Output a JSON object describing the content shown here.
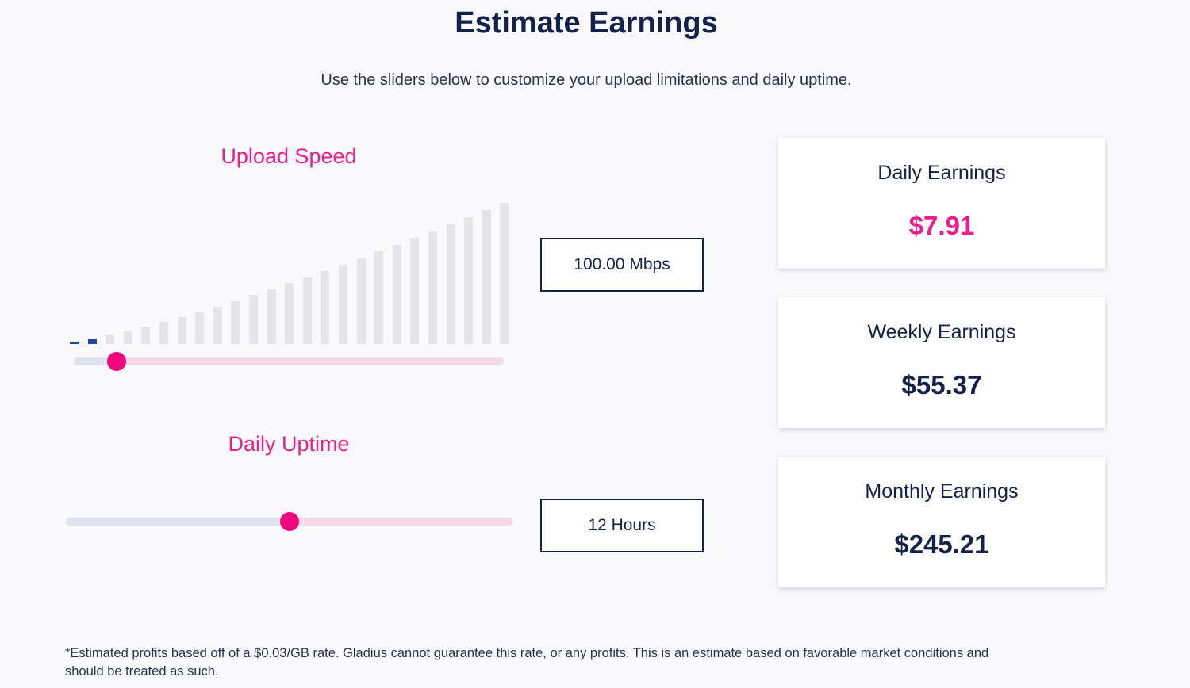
{
  "header": {
    "title": "Estimate Earnings",
    "subtitle": "Use the sliders below to customize your upload limitations and daily uptime."
  },
  "upload_speed": {
    "label": "Upload Speed",
    "value_text": "100.00 Mbps",
    "slider_level": 0.1,
    "bars_total": 25,
    "bars_active": 2
  },
  "daily_uptime": {
    "label": "Daily Uptime",
    "value_text": "12 Hours",
    "slider_level": 0.5
  },
  "earnings": {
    "daily": {
      "label": "Daily Earnings",
      "value": "$7.91"
    },
    "weekly": {
      "label": "Weekly Earnings",
      "value": "$55.37"
    },
    "monthly": {
      "label": "Monthly Earnings",
      "value": "$245.21"
    }
  },
  "footer": {
    "disclaimer_line1": "*Estimated profits based off of a $0.03/GB rate. Gladius cannot guarantee this rate, or any profits. This is an estimate based on favorable market conditions and",
    "disclaimer_line2": "should be treated as such."
  },
  "colors": {
    "accent_pink": "#ec1e8c",
    "navy": "#14224b",
    "bar_active": "#23479f",
    "bar_idle": "#e5e5e8"
  }
}
